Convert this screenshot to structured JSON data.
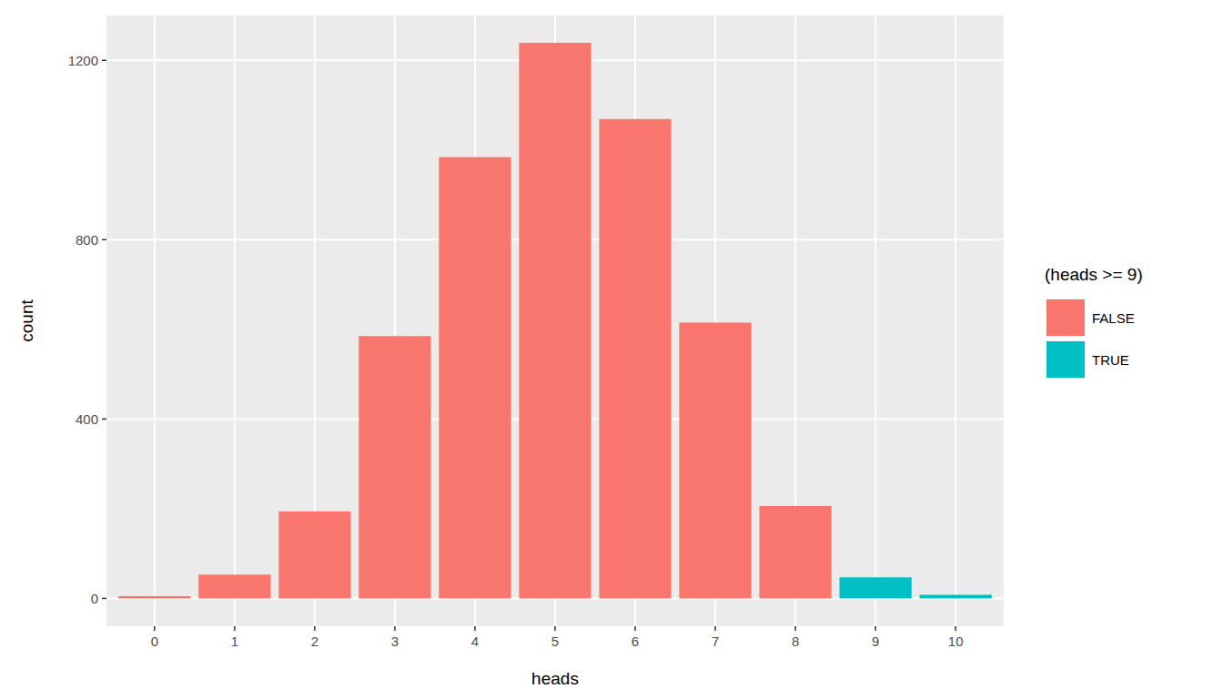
{
  "chart_data": {
    "type": "bar",
    "x_label": "heads",
    "y_label": "count",
    "legend_title": "(heads >= 9)",
    "categories": [
      "0",
      "1",
      "2",
      "3",
      "4",
      "5",
      "6",
      "7",
      "8",
      "9",
      "10"
    ],
    "series": [
      {
        "name": "FALSE",
        "color": "#F8766D",
        "values": [
          5,
          53,
          194,
          585,
          984,
          1239,
          1069,
          615,
          206,
          null,
          null
        ]
      },
      {
        "name": "TRUE",
        "color": "#00BFC4",
        "values": [
          null,
          null,
          null,
          null,
          null,
          null,
          null,
          null,
          null,
          47,
          8
        ]
      }
    ],
    "ylim": [
      -62,
      1300
    ],
    "yticks": [
      0,
      400,
      800,
      1200
    ],
    "grid": true,
    "legend": "right"
  }
}
